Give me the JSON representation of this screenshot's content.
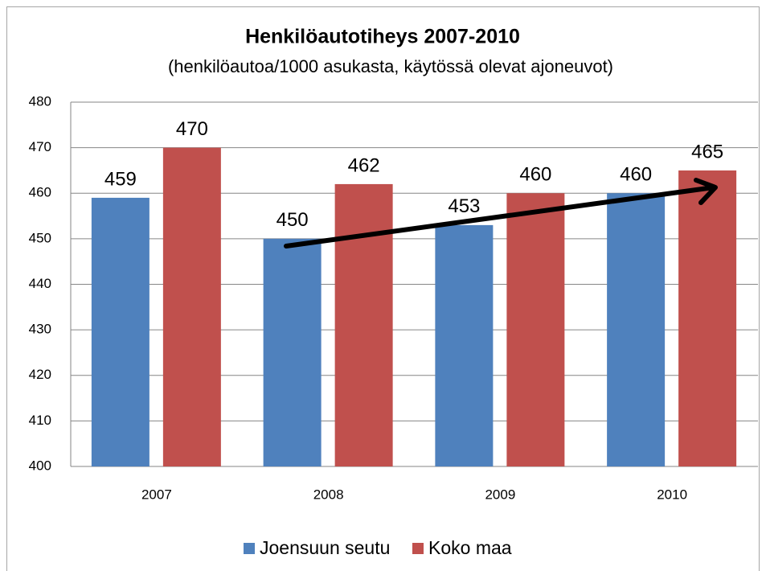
{
  "chart_data": {
    "type": "bar",
    "title": "Henkilöautotiheys  2007-2010",
    "subtitle": "(henkilöautoa/1000 asukasta, käytössä olevat ajoneuvot)",
    "categories": [
      "2007",
      "2008",
      "2009",
      "2010"
    ],
    "series": [
      {
        "name": "Joensuun seutu",
        "color": "#4f81bd",
        "values": [
          459,
          450,
          453,
          460
        ]
      },
      {
        "name": "Koko maa",
        "color": "#c0504d",
        "values": [
          470,
          462,
          460,
          465
        ]
      }
    ],
    "ylim": [
      400,
      480
    ],
    "yticks": [
      400,
      410,
      420,
      430,
      440,
      450,
      460,
      470,
      480
    ],
    "grid": true,
    "legend": "bottom"
  }
}
